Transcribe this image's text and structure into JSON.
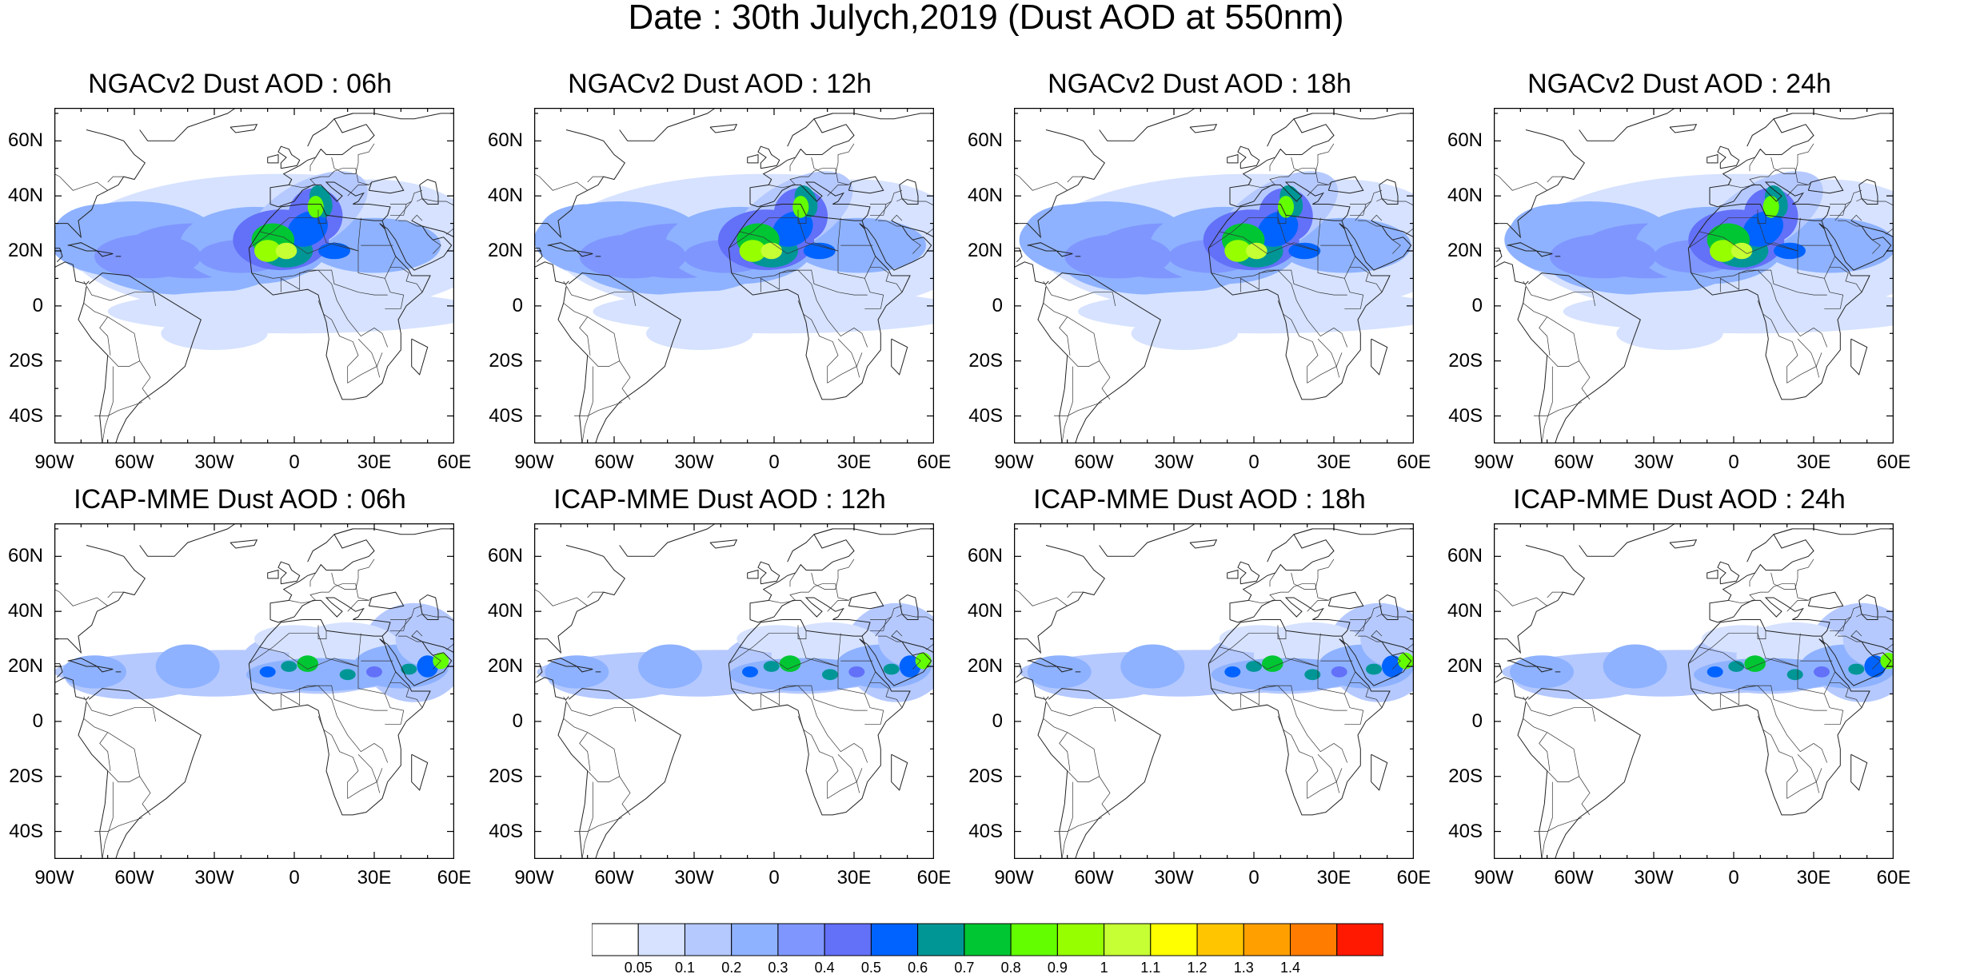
{
  "title": "Date : 30th Julych,2019 (Dust AOD at 550nm)",
  "lat_ticks": [
    "60N",
    "40N",
    "20N",
    "0",
    "20S",
    "40S"
  ],
  "lon_ticks": [
    "90W",
    "60W",
    "30W",
    "0",
    "30E",
    "60E"
  ],
  "panels": [
    {
      "title": "NGACv2 Dust AOD : 06h",
      "model": "NGACv2",
      "hour": "06h"
    },
    {
      "title": "NGACv2 Dust AOD : 12h",
      "model": "NGACv2",
      "hour": "12h"
    },
    {
      "title": "NGACv2 Dust AOD : 18h",
      "model": "NGACv2",
      "hour": "18h"
    },
    {
      "title": "NGACv2 Dust AOD : 24h",
      "model": "NGACv2",
      "hour": "24h"
    },
    {
      "title": "ICAP-MME Dust AOD : 06h",
      "model": "ICAP-MME",
      "hour": "06h"
    },
    {
      "title": "ICAP-MME Dust AOD : 12h",
      "model": "ICAP-MME",
      "hour": "12h"
    },
    {
      "title": "ICAP-MME Dust AOD : 18h",
      "model": "ICAP-MME",
      "hour": "18h"
    },
    {
      "title": "ICAP-MME Dust AOD : 24h",
      "model": "ICAP-MME",
      "hour": "24h"
    }
  ],
  "colorbar": {
    "labels": [
      "0.05",
      "0.1",
      "0.2",
      "0.3",
      "0.4",
      "0.5",
      "0.6",
      "0.7",
      "0.8",
      "0.9",
      "1",
      "1.1",
      "1.2",
      "1.3",
      "1.4"
    ],
    "colors": [
      "#ffffff",
      "#d6e2ff",
      "#b5c9ff",
      "#8eb2ff",
      "#7f96ff",
      "#6370f8",
      "#0063ff",
      "#009696",
      "#00c633",
      "#63ff00",
      "#96ff00",
      "#c6ff33",
      "#ffff00",
      "#ffc600",
      "#ffa000",
      "#ff7c00",
      "#ff1900"
    ]
  }
}
